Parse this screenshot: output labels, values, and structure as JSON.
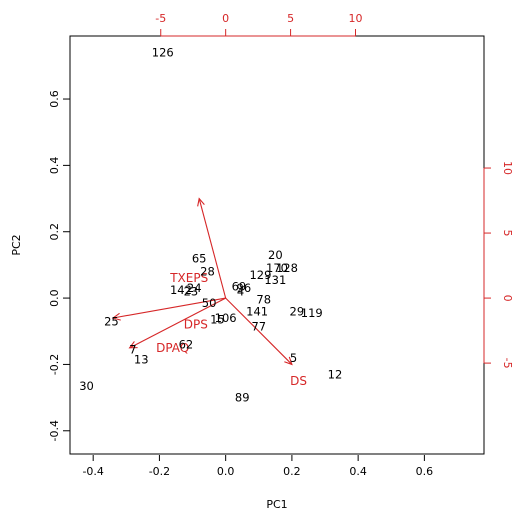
{
  "chart_data": {
    "type": "scatter",
    "subtype": "biplot",
    "xlabel": "PC1",
    "ylabel": "PC2",
    "xlim": [
      -0.47,
      0.78
    ],
    "ylim": [
      -0.47,
      0.79
    ],
    "x_ticks": [
      "-0.4",
      "-0.2",
      "0.0",
      "0.2",
      "0.4",
      "0.6"
    ],
    "x_tick_values": [
      -0.4,
      -0.2,
      0.0,
      0.2,
      0.4,
      0.6
    ],
    "y_ticks": [
      "-0.4",
      "-0.2",
      "0.0",
      "0.2",
      "0.4",
      "0.6"
    ],
    "y_tick_values": [
      -0.4,
      -0.2,
      0.0,
      0.2,
      0.4,
      0.6
    ],
    "secondary_axes": {
      "color": "#d62728",
      "top_ticks": [
        "-5",
        "0",
        "5",
        "10"
      ],
      "top_tick_values": [
        -5,
        0,
        5,
        10
      ],
      "right_ticks": [
        "-5",
        "0",
        "5",
        "10"
      ],
      "right_tick_values": [
        -5,
        0,
        5,
        10
      ],
      "scale_per_unit": 0.0392
    },
    "points": [
      {
        "label": "126",
        "x": -0.19,
        "y": 0.74
      },
      {
        "label": "65",
        "x": -0.08,
        "y": 0.12
      },
      {
        "label": "28",
        "x": -0.055,
        "y": 0.08
      },
      {
        "label": "20",
        "x": 0.15,
        "y": 0.13
      },
      {
        "label": "170",
        "x": 0.155,
        "y": 0.09
      },
      {
        "label": "128",
        "x": 0.185,
        "y": 0.09
      },
      {
        "label": "129",
        "x": 0.105,
        "y": 0.07
      },
      {
        "label": "131",
        "x": 0.15,
        "y": 0.055
      },
      {
        "label": "69",
        "x": 0.04,
        "y": 0.035
      },
      {
        "label": "96",
        "x": 0.055,
        "y": 0.03
      },
      {
        "label": "4",
        "x": 0.045,
        "y": 0.02
      },
      {
        "label": "142",
        "x": -0.135,
        "y": 0.025
      },
      {
        "label": "24",
        "x": -0.095,
        "y": 0.03
      },
      {
        "label": "23",
        "x": -0.105,
        "y": 0.02
      },
      {
        "label": "78",
        "x": 0.115,
        "y": -0.005
      },
      {
        "label": "50",
        "x": -0.05,
        "y": -0.015
      },
      {
        "label": "141",
        "x": 0.095,
        "y": -0.04
      },
      {
        "label": "29",
        "x": 0.215,
        "y": -0.04
      },
      {
        "label": "119",
        "x": 0.26,
        "y": -0.045
      },
      {
        "label": "106",
        "x": 0.0,
        "y": -0.06
      },
      {
        "label": "15",
        "x": -0.025,
        "y": -0.065
      },
      {
        "label": "77",
        "x": 0.1,
        "y": -0.085
      },
      {
        "label": "25",
        "x": -0.345,
        "y": -0.07
      },
      {
        "label": "7",
        "x": -0.28,
        "y": -0.155
      },
      {
        "label": "62",
        "x": -0.12,
        "y": -0.14
      },
      {
        "label": "13",
        "x": -0.255,
        "y": -0.185
      },
      {
        "label": "5",
        "x": 0.205,
        "y": -0.18
      },
      {
        "label": "12",
        "x": 0.33,
        "y": -0.23
      },
      {
        "label": "30",
        "x": -0.42,
        "y": -0.265
      },
      {
        "label": "89",
        "x": 0.05,
        "y": -0.3
      }
    ],
    "loadings": [
      {
        "label": "TXEPS",
        "x": -0.08,
        "y": 0.3
      },
      {
        "label": "DPS",
        "x": -0.34,
        "y": -0.06
      },
      {
        "label": "DPAQ",
        "x": -0.29,
        "y": -0.15
      },
      {
        "label": "DS",
        "x": 0.2,
        "y": -0.2
      }
    ],
    "loading_label_offsets": {
      "TXEPS": [
        -0.11,
        0.06
      ],
      "DPS": [
        -0.09,
        -0.08
      ],
      "DPAQ": [
        -0.16,
        -0.15
      ],
      "DS": [
        0.22,
        -0.25
      ]
    },
    "observation_color": "#000000",
    "variable_color": "#d62728",
    "grid": false,
    "legend": "none"
  }
}
